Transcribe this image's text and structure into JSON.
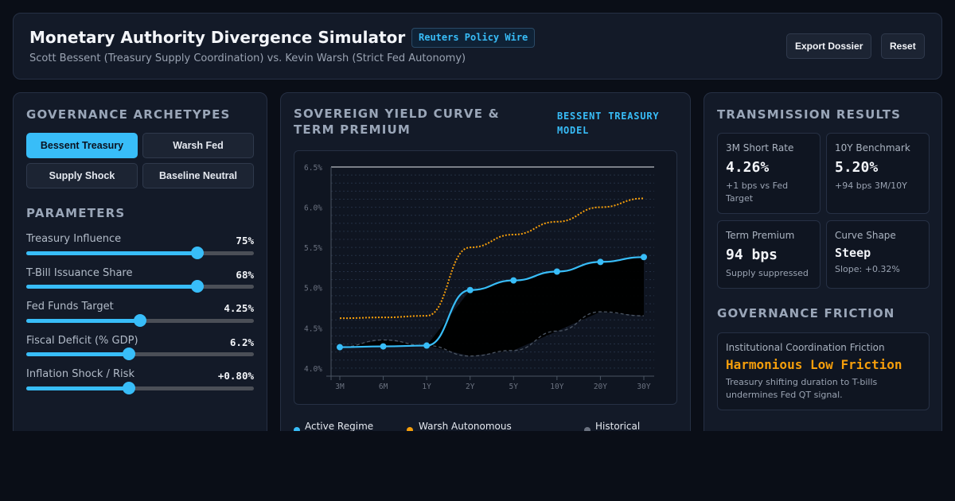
{
  "header": {
    "title": "Monetary Authority Divergence Simulator",
    "badge": "Reuters Policy Wire",
    "subtitle": "Scott Bessent (Treasury Supply Coordination) vs. Kevin Warsh (Strict Fed Autonomy)",
    "export_label": "Export Dossier",
    "reset_label": "Reset"
  },
  "left": {
    "archetypes_title": "GOVERNANCE ARCHETYPES",
    "archetypes": [
      "Bessent Treasury",
      "Warsh Fed",
      "Supply Shock",
      "Baseline Neutral"
    ],
    "active_archetype": "Bessent Treasury",
    "params_title": "PARAMETERS",
    "params": [
      {
        "label": "Treasury Influence",
        "value": "75%",
        "level": 0.75
      },
      {
        "label": "T-Bill Issuance Share",
        "value": "68%",
        "level": 0.75
      },
      {
        "label": "Fed Funds Target",
        "value": "4.25%",
        "level": 0.5
      },
      {
        "label": "Fiscal Deficit (% GDP)",
        "value": "6.2%",
        "level": 0.45
      },
      {
        "label": "Inflation Shock / Risk",
        "value": "+0.80%",
        "level": 0.45
      }
    ]
  },
  "center": {
    "title": "SOVEREIGN YIELD CURVE & TERM PREMIUM",
    "model_label": "BESSENT TREASURY MODEL",
    "legend": [
      "Active Regime",
      "Warsh Autonomous",
      "Historical"
    ]
  },
  "chart_data": {
    "type": "line",
    "categories": [
      "3M",
      "6M",
      "1Y",
      "2Y",
      "5Y",
      "10Y",
      "20Y",
      "30Y"
    ],
    "ylim": [
      3.9,
      6.5
    ],
    "y_ticks": [
      "6.5%",
      "6.0%",
      "5.5%",
      "5.0%",
      "4.5%",
      "4.0%"
    ],
    "y_tick_values": [
      6.5,
      6.0,
      5.5,
      5.0,
      4.5,
      4.0
    ],
    "grid": true,
    "series": [
      {
        "name": "Active Regime",
        "values": [
          4.26,
          4.27,
          4.28,
          4.97,
          5.09,
          5.2,
          5.32,
          5.38
        ],
        "color": "#38bdf8",
        "style": "solid"
      },
      {
        "name": "Warsh Autonomous",
        "values": [
          4.62,
          4.63,
          4.65,
          5.5,
          5.66,
          5.82,
          6.0,
          6.11
        ],
        "color": "#f59e0b",
        "style": "dotted"
      },
      {
        "name": "Historical",
        "values": [
          4.26,
          4.35,
          4.28,
          4.15,
          4.22,
          4.46,
          4.7,
          4.65
        ],
        "color": "#4b5563",
        "style": "dashed"
      }
    ]
  },
  "right": {
    "results_title": "TRANSMISSION RESULTS",
    "cards": [
      {
        "label": "3M Short Rate",
        "value": "4.26%",
        "note": "+1 bps vs Fed Target"
      },
      {
        "label": "10Y Benchmark",
        "value": "5.20%",
        "note": "+94 bps 3M/10Y"
      },
      {
        "label": "Term Premium",
        "value": "94 bps",
        "note": "Supply suppressed"
      },
      {
        "label": "Curve Shape",
        "value": "Steep",
        "note": "Slope: +0.32%"
      }
    ],
    "friction_title": "GOVERNANCE FRICTION",
    "friction": {
      "label": "Institutional Coordination Friction",
      "value": "Harmonious Low Friction",
      "note": "Treasury shifting duration to T-bills undermines Fed QT signal.",
      "accent": "#f59e0b"
    }
  }
}
